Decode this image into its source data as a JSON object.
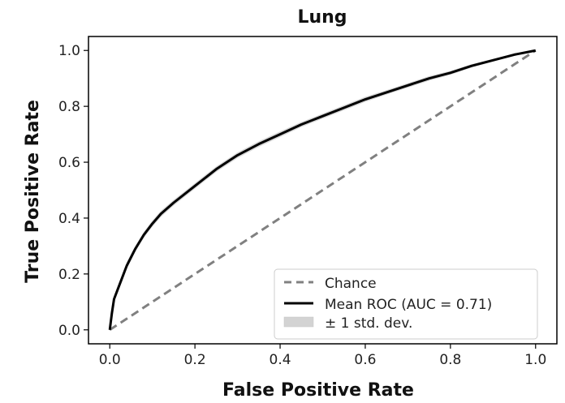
{
  "chart_data": {
    "type": "line",
    "title": "Lung",
    "xlabel": "False Positive Rate",
    "ylabel": "True Positive Rate",
    "xlim": [
      -0.05,
      1.05
    ],
    "ylim": [
      -0.05,
      1.05
    ],
    "xticks": [
      0.0,
      0.2,
      0.4,
      0.6,
      0.8,
      1.0
    ],
    "xtick_labels": [
      "0.0",
      "0.2",
      "0.4",
      "0.6",
      "0.8",
      "1.0"
    ],
    "yticks": [
      0.0,
      0.2,
      0.4,
      0.6,
      0.8,
      1.0
    ],
    "ytick_labels": [
      "0.0",
      "0.2",
      "0.4",
      "0.6",
      "0.8",
      "1.0"
    ],
    "grid": false,
    "legend_position": "lower-right",
    "series": [
      {
        "name": "Chance",
        "style": "dashed",
        "color": "#808080",
        "x": [
          0.0,
          1.0
        ],
        "y": [
          0.0,
          1.0
        ]
      },
      {
        "name": "Mean ROC (AUC = 0.71)",
        "style": "solid",
        "color": "#000000",
        "x": [
          0.0,
          0.005,
          0.01,
          0.02,
          0.03,
          0.04,
          0.05,
          0.06,
          0.08,
          0.1,
          0.12,
          0.15,
          0.2,
          0.25,
          0.3,
          0.35,
          0.4,
          0.45,
          0.5,
          0.55,
          0.6,
          0.65,
          0.7,
          0.75,
          0.8,
          0.85,
          0.9,
          0.95,
          1.0
        ],
        "y": [
          0.0,
          0.06,
          0.11,
          0.15,
          0.19,
          0.23,
          0.26,
          0.29,
          0.34,
          0.38,
          0.415,
          0.455,
          0.515,
          0.575,
          0.625,
          0.665,
          0.7,
          0.735,
          0.765,
          0.795,
          0.825,
          0.85,
          0.875,
          0.9,
          0.92,
          0.945,
          0.965,
          0.985,
          1.0
        ]
      }
    ],
    "band": {
      "name": "± 1 std. dev.",
      "color": "#d3d3d3",
      "std": [
        0.0,
        0.01,
        0.012,
        0.012,
        0.012,
        0.012,
        0.012,
        0.011,
        0.011,
        0.011,
        0.011,
        0.01,
        0.01,
        0.01,
        0.01,
        0.01,
        0.01,
        0.009,
        0.009,
        0.009,
        0.009,
        0.008,
        0.008,
        0.008,
        0.007,
        0.006,
        0.005,
        0.004,
        0.0
      ]
    }
  }
}
